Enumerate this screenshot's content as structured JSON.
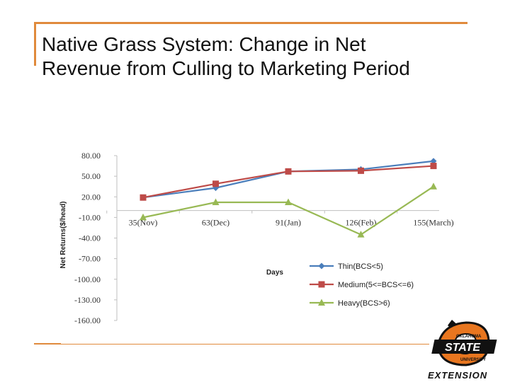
{
  "slide": {
    "title_line1": "Native Grass System:  Change in Net",
    "title_line2": "Revenue from Culling to Marketing Period",
    "accent_color": "#e08a3c"
  },
  "chart_data": {
    "type": "line",
    "title": "",
    "xlabel": "Days",
    "ylabel": "Net Returns($/head)",
    "categories": [
      "35(Nov)",
      "63(Dec)",
      "91(Jan)",
      "126(Feb)",
      "155(March)"
    ],
    "ylim": [
      -160,
      80
    ],
    "yticks": [
      80,
      50,
      20,
      -10,
      -40,
      -70,
      -100,
      -130,
      -160
    ],
    "ytick_labels": [
      "80.00",
      "50.00",
      "20.00",
      "-10.00",
      "-40.00",
      "-70.00",
      "-100.00",
      "-130.00",
      "-160.00"
    ],
    "grid": false,
    "legend_position": "bottom-right",
    "series": [
      {
        "name": "Thin(BCS<5)",
        "values": [
          19,
          33,
          57,
          60,
          72
        ],
        "color": "#4a7ebb",
        "marker": "diamond"
      },
      {
        "name": "Medium(5<=BCS<=6)",
        "values": [
          19,
          39,
          57,
          58,
          65
        ],
        "color": "#be4b48",
        "marker": "square"
      },
      {
        "name": "Heavy(BCS>6)",
        "values": [
          -10,
          12,
          12,
          -35,
          35
        ],
        "color": "#98b954",
        "marker": "triangle"
      }
    ]
  },
  "logo": {
    "text_top": "OKLAHOMA",
    "text_main": "STATE",
    "text_sub": "UNIVERSITY",
    "text_bottom": "EXTENSION"
  }
}
